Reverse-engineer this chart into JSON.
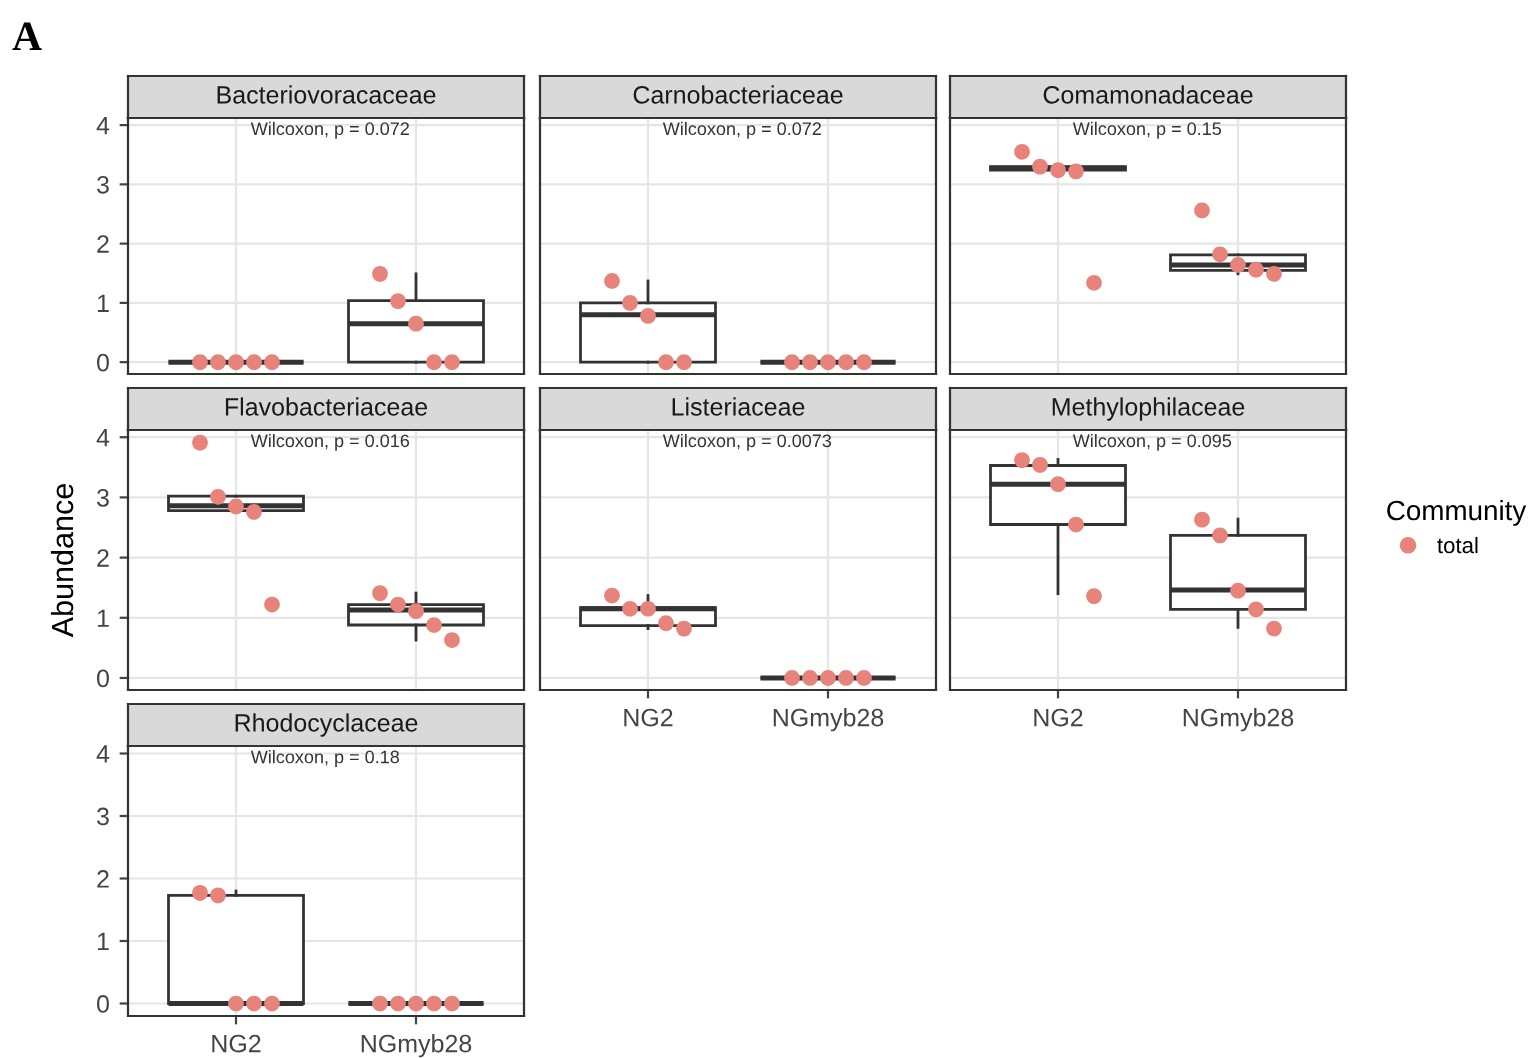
{
  "chart_data": [
    {
      "type": "box",
      "title": "Bacteriovoracaceae",
      "color": "#333333",
      "categories": [
        "NG2",
        "NGmyb28"
      ],
      "ylim": [
        -0.2,
        4.12
      ],
      "yticks": [
        0,
        1,
        2,
        3,
        4
      ],
      "grid": true,
      "tick_labels": "y",
      "annotations": [
        "A",
        "Wilcoxon, p = 0.072"
      ],
      "boxes": [
        {
          "low": 0,
          "q1": 0,
          "median": 0,
          "q3": 0,
          "high": 0
        },
        {
          "low": 0,
          "q1": 0,
          "median": 0.65,
          "q3": 1.04,
          "high": 1.49
        }
      ],
      "series": [
        {
          "type": "scatter",
          "color": "#e8837c",
          "x": [
            "NG2",
            "NG2",
            "NG2",
            "NG2",
            "NG2",
            "NGmyb28",
            "NGmyb28",
            "NGmyb28",
            "NGmyb28",
            "NGmyb28"
          ],
          "values": [
            0,
            0,
            0,
            0,
            0,
            1.49,
            1.03,
            0.65,
            0,
            0
          ]
        }
      ]
    },
    {
      "type": "box",
      "title": "Carnobacteriaceae",
      "color": "#333333",
      "categories": [
        "NG2",
        "NGmyb28"
      ],
      "ylim": [
        -0.2,
        4.12
      ],
      "yticks": [
        0,
        1,
        2,
        3,
        4
      ],
      "grid": true,
      "tick_labels": false,
      "annotations": [
        "Wilcoxon, p = 0.072"
      ],
      "boxes": [
        {
          "low": 0,
          "q1": 0,
          "median": 0.8,
          "q3": 1.0,
          "high": 1.37
        },
        {
          "low": 0,
          "q1": 0,
          "median": 0,
          "q3": 0,
          "high": 0
        }
      ],
      "series": [
        {
          "type": "scatter",
          "color": "#e8837c",
          "x": [
            "NG2",
            "NG2",
            "NG2",
            "NG2",
            "NG2",
            "NGmyb28",
            "NGmyb28",
            "NGmyb28",
            "NGmyb28",
            "NGmyb28"
          ],
          "values": [
            1.37,
            1.0,
            0.78,
            0,
            0,
            0,
            0,
            0,
            0,
            0
          ]
        }
      ]
    },
    {
      "type": "box",
      "title": "Comamonadaceae",
      "color": "#333333",
      "categories": [
        "NG2",
        "NGmyb28"
      ],
      "ylim": [
        -0.2,
        4.12
      ],
      "yticks": [
        0,
        1,
        2,
        3,
        4
      ],
      "grid": true,
      "tick_labels": false,
      "annotations": [
        "Wilcoxon, p = 0.15"
      ],
      "boxes": [
        {
          "low": 3.22,
          "q1": 3.24,
          "median": 3.27,
          "q3": 3.3,
          "high": 3.3
        },
        {
          "low": 1.49,
          "q1": 1.55,
          "median": 1.64,
          "q3": 1.81,
          "high": 1.81
        }
      ],
      "series": [
        {
          "type": "scatter",
          "color": "#e8837c",
          "x": [
            "NG2",
            "NG2",
            "NG2",
            "NG2",
            "NG2",
            "NGmyb28",
            "NGmyb28",
            "NGmyb28",
            "NGmyb28",
            "NGmyb28"
          ],
          "values": [
            3.55,
            3.3,
            3.24,
            3.22,
            1.34,
            2.56,
            1.82,
            1.64,
            1.56,
            1.49
          ]
        }
      ]
    },
    {
      "type": "box",
      "title": "Flavobacteriaceae",
      "color": "#333333",
      "ylabel": "Abundance",
      "categories": [
        "NG2",
        "NGmyb28"
      ],
      "ylim": [
        -0.2,
        4.12
      ],
      "yticks": [
        0,
        1,
        2,
        3,
        4
      ],
      "grid": true,
      "tick_labels": "y",
      "annotations": [
        "Wilcoxon, p = 0.016"
      ],
      "boxes": [
        {
          "low": 2.76,
          "q1": 2.78,
          "median": 2.86,
          "q3": 3.02,
          "high": 3.02
        },
        {
          "low": 0.63,
          "q1": 0.88,
          "median": 1.13,
          "q3": 1.22,
          "high": 1.41
        }
      ],
      "series": [
        {
          "type": "scatter",
          "color": "#e8837c",
          "x": [
            "NG2",
            "NG2",
            "NG2",
            "NG2",
            "NG2",
            "NGmyb28",
            "NGmyb28",
            "NGmyb28",
            "NGmyb28",
            "NGmyb28"
          ],
          "values": [
            3.91,
            3.01,
            2.85,
            2.76,
            1.22,
            1.41,
            1.22,
            1.11,
            0.88,
            0.63
          ]
        }
      ]
    },
    {
      "type": "box",
      "title": "Listeriaceae",
      "color": "#333333",
      "categories": [
        "NG2",
        "NGmyb28"
      ],
      "ylim": [
        -0.2,
        4.12
      ],
      "yticks": [
        0,
        1,
        2,
        3,
        4
      ],
      "grid": true,
      "tick_labels": "x",
      "annotations": [
        "Wilcoxon, p = 0.0073"
      ],
      "boxes": [
        {
          "low": 0.82,
          "q1": 0.87,
          "median": 1.15,
          "q3": 1.17,
          "high": 1.37
        },
        {
          "low": 0,
          "q1": 0,
          "median": 0,
          "q3": 0,
          "high": 0
        }
      ],
      "series": [
        {
          "type": "scatter",
          "color": "#e8837c",
          "x": [
            "NG2",
            "NG2",
            "NG2",
            "NG2",
            "NG2",
            "NGmyb28",
            "NGmyb28",
            "NGmyb28",
            "NGmyb28",
            "NGmyb28"
          ],
          "values": [
            1.37,
            1.15,
            1.15,
            0.91,
            0.82,
            0,
            0,
            0,
            0,
            0
          ]
        }
      ]
    },
    {
      "type": "box",
      "title": "Methylophilaceae",
      "color": "#333333",
      "categories": [
        "NG2",
        "NGmyb28"
      ],
      "ylim": [
        -0.2,
        4.12
      ],
      "yticks": [
        0,
        1,
        2,
        3,
        4
      ],
      "grid": true,
      "tick_labels": "x",
      "legend": "right",
      "legend_title": "Community",
      "annotations": [
        "Wilcoxon, p = 0.095"
      ],
      "boxes": [
        {
          "low": 1.4,
          "q1": 2.55,
          "median": 3.22,
          "q3": 3.53,
          "high": 3.63
        },
        {
          "low": 0.84,
          "q1": 1.14,
          "median": 1.46,
          "q3": 2.37,
          "high": 2.64
        }
      ],
      "series": [
        {
          "type": "scatter",
          "name": "total",
          "color": "#e8837c",
          "x": [
            "NG2",
            "NG2",
            "NG2",
            "NG2",
            "NG2",
            "NGmyb28",
            "NGmyb28",
            "NGmyb28",
            "NGmyb28",
            "NGmyb28"
          ],
          "values": [
            3.62,
            3.54,
            3.22,
            2.55,
            1.36,
            2.63,
            2.37,
            1.45,
            1.14,
            0.82
          ]
        }
      ]
    },
    {
      "type": "box",
      "title": "Rhodocyclaceae",
      "color": "#333333",
      "categories": [
        "NG2",
        "NGmyb28"
      ],
      "ylim": [
        -0.2,
        4.12
      ],
      "yticks": [
        0,
        1,
        2,
        3,
        4
      ],
      "grid": true,
      "annotations": [
        "Wilcoxon, p = 0.18"
      ],
      "boxes": [
        {
          "low": 0,
          "q1": 0,
          "median": 0,
          "q3": 1.73,
          "high": 1.8
        },
        {
          "low": 0,
          "q1": 0,
          "median": 0,
          "q3": 0,
          "high": 0
        }
      ],
      "series": [
        {
          "type": "scatter",
          "color": "#e8837c",
          "x": [
            "NG2",
            "NG2",
            "NG2",
            "NG2",
            "NG2",
            "NGmyb28",
            "NGmyb28",
            "NGmyb28",
            "NGmyb28",
            "NGmyb28"
          ],
          "values": [
            1.77,
            1.73,
            0,
            0,
            0,
            0,
            0,
            0,
            0,
            0
          ]
        }
      ]
    }
  ]
}
